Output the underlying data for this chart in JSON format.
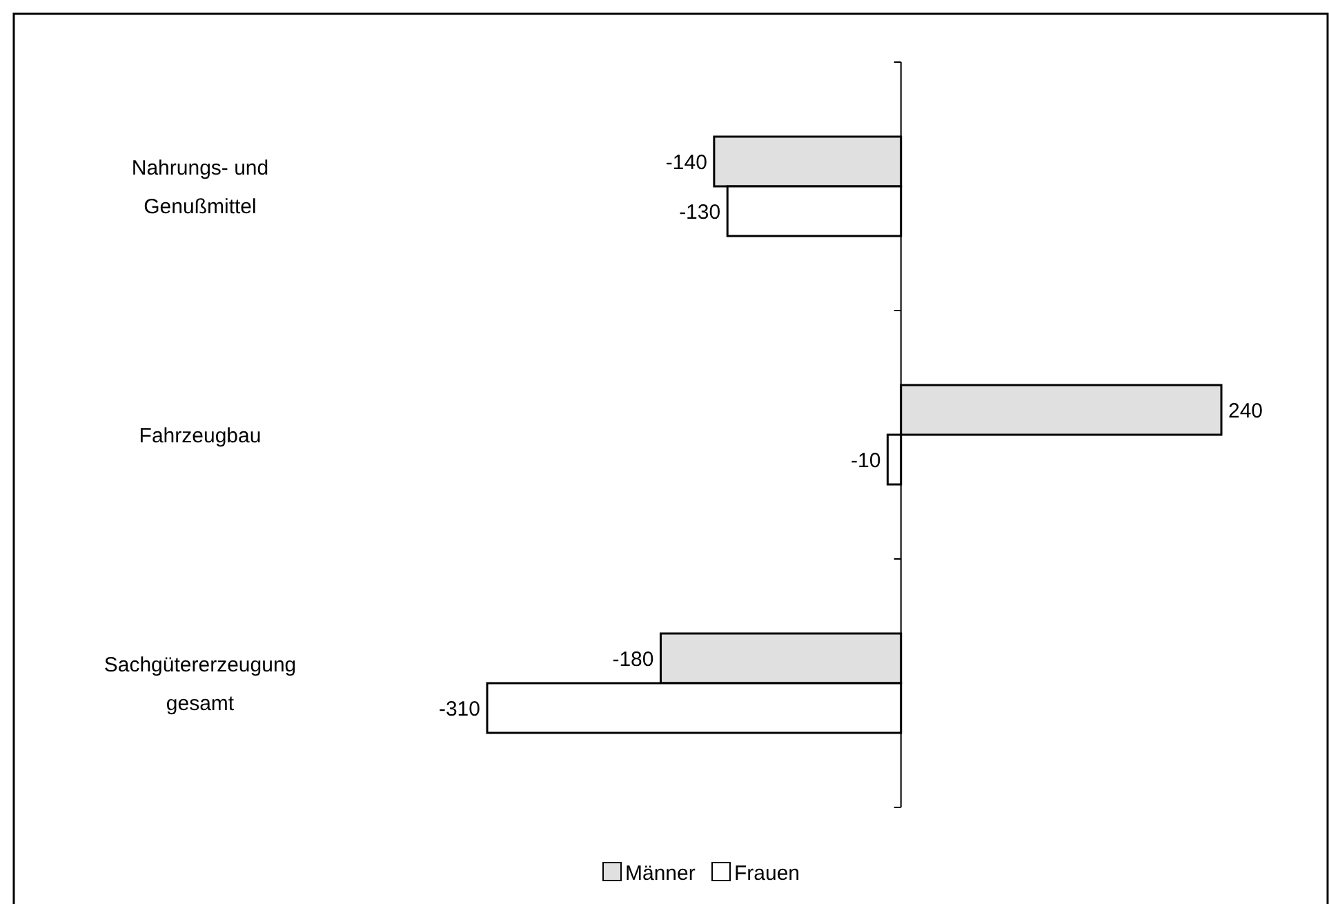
{
  "chart_data": {
    "type": "bar",
    "orientation": "horizontal",
    "data_labels": true,
    "legend": "bottom",
    "categories": [
      "Nahrungs- und Genußmittel",
      "Fahrzeugbau",
      "Sachgütererzeugung gesamt"
    ],
    "series": [
      {
        "name": "Männer",
        "color": "#e0e0e0",
        "values": [
          -140,
          240,
          -180
        ]
      },
      {
        "name": "Frauen",
        "color": "#ffffff",
        "values": [
          -130,
          -10,
          -310
        ]
      }
    ]
  }
}
